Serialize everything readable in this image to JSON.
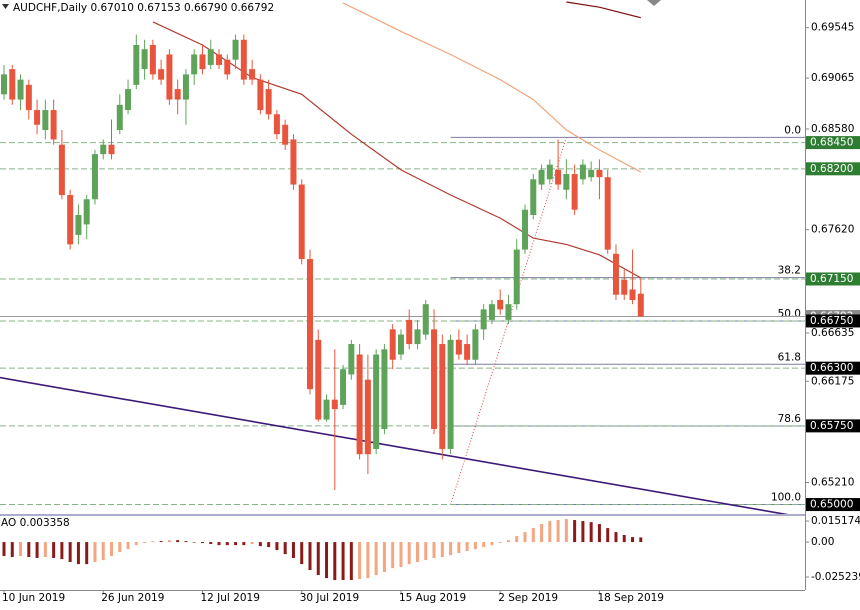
{
  "header": {
    "title": "AUDCHF,Daily  0.67010 0.67153 0.66790 0.66792"
  },
  "chart_data": [
    {
      "type": "candlestick",
      "categories": [
        "10 Jun 2019",
        null,
        null,
        null,
        null,
        null,
        null,
        null,
        null,
        null,
        null,
        null,
        "26 Jun 2019",
        null,
        null,
        null,
        null,
        null,
        null,
        null,
        null,
        null,
        null,
        null,
        "12 Jul 2019",
        null,
        null,
        null,
        null,
        null,
        null,
        null,
        null,
        null,
        null,
        null,
        "30 Jul 2019",
        null,
        null,
        null,
        null,
        null,
        null,
        null,
        null,
        null,
        null,
        null,
        "15 Aug 2019",
        null,
        null,
        null,
        null,
        null,
        null,
        null,
        null,
        null,
        null,
        null,
        "2 Sep 2019",
        null,
        null,
        null,
        null,
        null,
        null,
        null,
        null,
        null,
        null,
        null,
        "18 Sep 2019",
        null,
        null,
        null,
        null,
        null
      ],
      "ohlc": [
        [
          0.6891,
          0.6919,
          0.6886,
          0.691
        ],
        [
          0.6915,
          0.6919,
          0.6881,
          0.6886
        ],
        [
          0.6886,
          0.691,
          0.6876,
          0.6905
        ],
        [
          0.69,
          0.6905,
          0.6867,
          0.6876
        ],
        [
          0.6876,
          0.6886,
          0.6853,
          0.6862
        ],
        [
          0.6857,
          0.6886,
          0.6848,
          0.6876
        ],
        [
          0.6876,
          0.6886,
          0.6843,
          0.6848
        ],
        [
          0.6843,
          0.6857,
          0.6791,
          0.6795
        ],
        [
          0.6795,
          0.68,
          0.6743,
          0.6748
        ],
        [
          0.6757,
          0.6786,
          0.6748,
          0.6776
        ],
        [
          0.6767,
          0.6795,
          0.6753,
          0.6791
        ],
        [
          0.6791,
          0.6838,
          0.6786,
          0.6834
        ],
        [
          0.6834,
          0.6848,
          0.6829,
          0.6843
        ],
        [
          0.6843,
          0.6867,
          0.6829,
          0.6834
        ],
        [
          0.6857,
          0.6891,
          0.6853,
          0.6881
        ],
        [
          0.6876,
          0.6905,
          0.6872,
          0.6896
        ],
        [
          0.69,
          0.6948,
          0.6896,
          0.6938
        ],
        [
          0.6915,
          0.6943,
          0.6905,
          0.6934
        ],
        [
          0.6938,
          0.6943,
          0.6905,
          0.691
        ],
        [
          0.6915,
          0.6924,
          0.69,
          0.6905
        ],
        [
          0.6929,
          0.6934,
          0.6881,
          0.6886
        ],
        [
          0.6896,
          0.6905,
          0.6872,
          0.6886
        ],
        [
          0.6886,
          0.6915,
          0.6862,
          0.691
        ],
        [
          0.691,
          0.6934,
          0.69,
          0.6929
        ],
        [
          0.6929,
          0.6938,
          0.691,
          0.6915
        ],
        [
          0.6919,
          0.6943,
          0.6915,
          0.6934
        ],
        [
          0.6929,
          0.6934,
          0.6915,
          0.6919
        ],
        [
          0.6924,
          0.6929,
          0.6905,
          0.691
        ],
        [
          0.6924,
          0.6948,
          0.6915,
          0.6943
        ],
        [
          0.6943,
          0.6948,
          0.69,
          0.6905
        ],
        [
          0.6915,
          0.6924,
          0.69,
          0.6905
        ],
        [
          0.6905,
          0.691,
          0.6872,
          0.6876
        ],
        [
          0.6896,
          0.6905,
          0.6867,
          0.6872
        ],
        [
          0.6872,
          0.6876,
          0.6848,
          0.6853
        ],
        [
          0.6862,
          0.6867,
          0.6838,
          0.6843
        ],
        [
          0.6848,
          0.6853,
          0.68,
          0.6805
        ],
        [
          0.6805,
          0.681,
          0.6729,
          0.6734
        ],
        [
          0.6734,
          0.6743,
          0.6605,
          0.661
        ],
        [
          0.6657,
          0.6667,
          0.6579,
          0.6581
        ],
        [
          0.6581,
          0.6605,
          0.6579,
          0.66
        ],
        [
          0.66,
          0.6648,
          0.6514,
          0.6591
        ],
        [
          0.6595,
          0.6633,
          0.6591,
          0.6629
        ],
        [
          0.6624,
          0.6657,
          0.6619,
          0.6653
        ],
        [
          0.6643,
          0.6653,
          0.6543,
          0.6548
        ],
        [
          0.6619,
          0.6643,
          0.6529,
          0.6548
        ],
        [
          0.6553,
          0.6648,
          0.6548,
          0.6643
        ],
        [
          0.6572,
          0.6653,
          0.6567,
          0.6648
        ],
        [
          0.6667,
          0.6672,
          0.6629,
          0.6638
        ],
        [
          0.6643,
          0.6667,
          0.6638,
          0.6662
        ],
        [
          0.6676,
          0.6686,
          0.6648,
          0.6653
        ],
        [
          0.6653,
          0.6676,
          0.6648,
          0.6667
        ],
        [
          0.6662,
          0.6695,
          0.6657,
          0.6691
        ],
        [
          0.6667,
          0.6686,
          0.6567,
          0.6572
        ],
        [
          0.6653,
          0.6662,
          0.6543,
          0.6553
        ],
        [
          0.6553,
          0.6662,
          0.6548,
          0.6657
        ],
        [
          0.6657,
          0.6667,
          0.6638,
          0.6643
        ],
        [
          0.6653,
          0.6662,
          0.6633,
          0.6638
        ],
        [
          0.6638,
          0.6672,
          0.6633,
          0.6667
        ],
        [
          0.6667,
          0.6691,
          0.6657,
          0.6686
        ],
        [
          0.6676,
          0.6695,
          0.6672,
          0.6691
        ],
        [
          0.6695,
          0.6705,
          0.6681,
          0.6686
        ],
        [
          0.6676,
          0.67,
          0.6672,
          0.6691
        ],
        [
          0.6691,
          0.6753,
          0.6686,
          0.6743
        ],
        [
          0.6743,
          0.6786,
          0.6739,
          0.6781
        ],
        [
          0.6776,
          0.6815,
          0.6772,
          0.681
        ],
        [
          0.6805,
          0.6824,
          0.68,
          0.6819
        ],
        [
          0.681,
          0.6829,
          0.6805,
          0.6824
        ],
        [
          0.6819,
          0.6848,
          0.68,
          0.6805
        ],
        [
          0.68,
          0.6829,
          0.6791,
          0.6815
        ],
        [
          0.6815,
          0.6824,
          0.6776,
          0.6781
        ],
        [
          0.681,
          0.6829,
          0.6805,
          0.6824
        ],
        [
          0.6812,
          0.6827,
          0.6808,
          0.6819
        ],
        [
          0.6819,
          0.6829,
          0.6791,
          0.6812
        ],
        [
          0.6812,
          0.6819,
          0.6739,
          0.6743
        ],
        [
          0.6739,
          0.6748,
          0.6695,
          0.67
        ],
        [
          0.6714,
          0.6724,
          0.6695,
          0.67
        ],
        [
          0.6705,
          0.6743,
          0.6691,
          0.6695
        ],
        [
          0.6701,
          0.67153,
          0.6679,
          0.66792
        ]
      ],
      "colors": {
        "up": "#5fa35a",
        "down": "#e9553c"
      },
      "ylim": [
        0.6491,
        0.69809
      ],
      "yticks": [
        0.69545,
        0.69065,
        {
          "value": 0.6858,
          "label": "0.68580"
        },
        {
          "value": 0.6762,
          "label": "0.67620"
        },
        0.66635,
        0.66175,
        {
          "value": 0.6521,
          "label": "0.65210"
        }
      ],
      "lines": [
        {
          "color": "#b03a2e",
          "x": [
            18,
            24,
            30,
            36,
            42,
            48,
            54,
            60,
            64,
            68,
            72,
            77
          ],
          "values": [
            0.696,
            0.6938,
            0.6907,
            0.6891,
            0.6853,
            0.6819,
            0.6795,
            0.6773,
            0.6754,
            0.6748,
            0.6738,
            0.6716
          ]
        },
        {
          "color": "#f2a27a",
          "x": [
            41,
            48,
            54,
            60,
            64,
            68,
            72,
            77
          ],
          "values": [
            0.6978,
            0.6951,
            0.6929,
            0.6905,
            0.6886,
            0.6857,
            0.6838,
            0.6817
          ]
        },
        {
          "color": "#7a1010",
          "x": [
            68,
            72,
            77
          ],
          "values": [
            0.6979,
            0.6974,
            0.6964
          ]
        },
        {
          "color": "#3d1a78",
          "x": [
            -0.5,
            95
          ],
          "values": [
            0.6621,
            0.649
          ]
        }
      ],
      "levels": [
        {
          "value": 0.6845,
          "label": "0.68450",
          "color": "#2f7d32"
        },
        {
          "value": 0.682,
          "label": "0.68200",
          "color": "#2f7d32"
        },
        {
          "value": 0.6715,
          "label": "0.67150",
          "color": "#2f7d32"
        },
        {
          "value": 0.6675,
          "label": "0.66750",
          "color": "#000000"
        },
        {
          "value": 0.663,
          "label": "0.66300",
          "color": "#000000"
        },
        {
          "value": 0.6575,
          "label": "0.65750",
          "color": "#000000"
        },
        {
          "value": 0.65,
          "label": "0.65000",
          "color": "#000000"
        }
      ],
      "bid": 0.66792,
      "fib": {
        "x": [
          54,
          68
        ],
        "values": [
          0.65,
          0.685
        ],
        "levels": [
          {
            "value": 0,
            "label": "0.0"
          },
          38.2,
          {
            "value": 50,
            "label": "50.0"
          },
          61.8,
          78.6,
          {
            "value": 100,
            "label": "100.0"
          }
        ]
      }
    },
    {
      "type": "histogram",
      "title": "AO 0.003358",
      "values": [
        -0.0101,
        -0.0108,
        -0.0101,
        -0.0108,
        -0.0115,
        -0.0108,
        -0.0115,
        -0.0123,
        -0.0144,
        -0.0159,
        -0.0159,
        -0.0144,
        -0.013,
        -0.0101,
        -0.0072,
        -0.0051,
        -0.0022,
        -0.0007,
        0.0007,
        0.0007,
        0.0014,
        0.0014,
        0.0007,
        -0.0004,
        -0.0007,
        -0.0014,
        -0.0022,
        -0.0022,
        -0.0022,
        -0.0022,
        -0.0014,
        -0.0029,
        -0.0036,
        -0.0058,
        -0.0087,
        -0.0115,
        -0.0159,
        -0.0202,
        -0.0238,
        -0.026,
        -0.0274,
        -0.0274,
        -0.0274,
        -0.0267,
        -0.026,
        -0.0238,
        -0.0216,
        -0.0188,
        -0.018,
        -0.0159,
        -0.0144,
        -0.013,
        -0.0115,
        -0.0108,
        -0.0094,
        -0.0079,
        -0.0065,
        -0.0051,
        -0.0036,
        -0.0022,
        -0.0007,
        0.0014,
        0.0043,
        0.0072,
        0.0101,
        0.013,
        0.0152,
        0.0159,
        0.0166,
        0.0159,
        0.0152,
        0.0144,
        0.013,
        0.0101,
        0.0072,
        0.0051,
        0.0036,
        0.003358
      ],
      "colors": {
        "up": "#f4a582",
        "down": "#8b1a1a"
      },
      "ylim": [
        -0.0346,
        0.0181
      ],
      "yticks": [
        0.015174,
        {
          "value": 0,
          "label": "0.00"
        },
        -0.025239
      ]
    }
  ]
}
